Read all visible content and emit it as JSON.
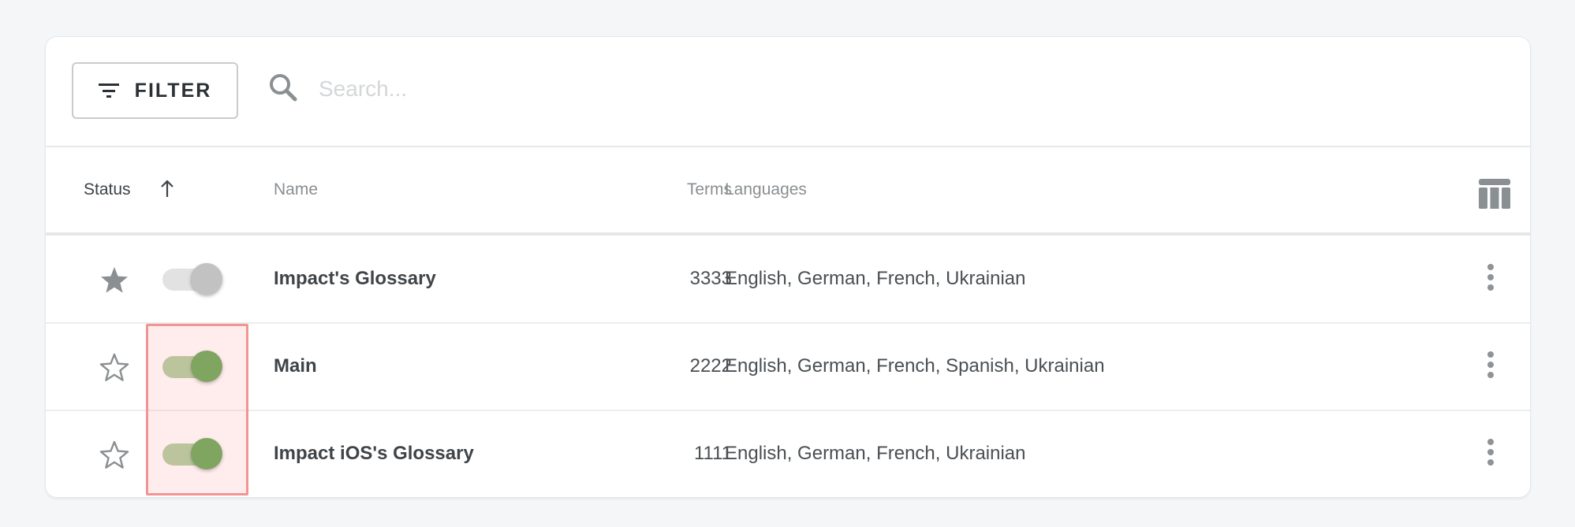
{
  "toolbar": {
    "filter_label": "FILTER",
    "filter_icon": "filter-list-icon",
    "search_icon": "search-icon",
    "search_placeholder": "Search...",
    "search_value": ""
  },
  "table": {
    "headers": {
      "status": "Status",
      "name": "Name",
      "terms": "Terms",
      "languages": "Languages"
    },
    "sort": {
      "column": "Status",
      "direction": "ascending"
    },
    "columns_icon": "view-column-icon",
    "rows": [
      {
        "starred": true,
        "enabled": false,
        "name": "Impact's Glossary",
        "terms": "3333",
        "languages": "English, German, French, Ukrainian"
      },
      {
        "starred": false,
        "enabled": true,
        "name": "Main",
        "terms": "2222",
        "languages": "English, German, French, Spanish, Ukrainian"
      },
      {
        "starred": false,
        "enabled": true,
        "name": "Impact iOS's Glossary",
        "terms": "1111",
        "languages": "English, German, French, Ukrainian"
      }
    ]
  },
  "colors": {
    "toggle_on_thumb": "#5ba44c",
    "toggle_on_track": "#a9cc9c",
    "toggle_off_thumb": "#c2c2c2",
    "toggle_off_track": "#e2e2e2",
    "icon_gray": "#8a8f91",
    "highlight_border": "#f29494"
  }
}
